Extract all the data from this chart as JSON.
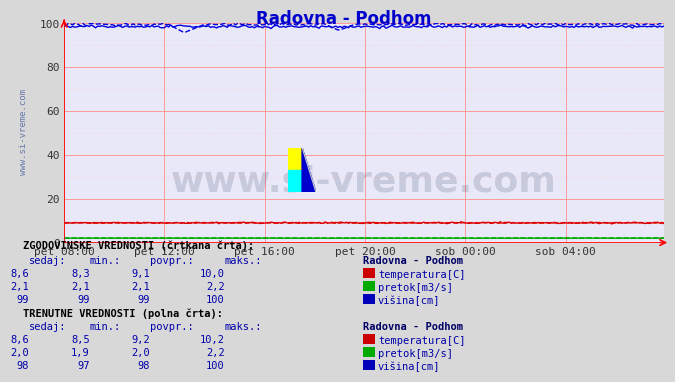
{
  "title": "Radovna - Podhom",
  "title_color": "#0000cc",
  "bg_color": "#d8d8d8",
  "plot_bg_color": "#e8e8f8",
  "grid_color_major": "#ff9999",
  "grid_color_minor": "#ffcccc",
  "xlim": [
    0,
    287
  ],
  "ylim": [
    0,
    100
  ],
  "yticks": [
    0,
    20,
    40,
    60,
    80,
    100
  ],
  "xtick_labels": [
    "pet 08:00",
    "pet 12:00",
    "pet 16:00",
    "pet 20:00",
    "sob 00:00",
    "sob 04:00"
  ],
  "xtick_positions": [
    0,
    48,
    96,
    144,
    192,
    240
  ],
  "watermark": "www.si-vreme.com",
  "watermark_color": "#334466",
  "watermark_alpha": 0.18,
  "sidebar_text": "www.si-vreme.com",
  "sidebar_color": "#6677aa",
  "temp_color": "#dd0000",
  "flow_color": "#00aa00",
  "height_color": "#0000dd",
  "table_text_color": "#0000aa",
  "legend_title": "Radovna - Podhom",
  "hist_label1": "ZGODOVINSKE VREDNOSTI (črtkana črta):",
  "hist_label2": "TRENUTNE VREDNOSTI (polna črta):",
  "col_headers": [
    "sedaj:",
    "min.:",
    "povpr.:",
    "maks.:"
  ],
  "hist_rows": [
    [
      "8,6",
      "8,3",
      "9,1",
      "10,0",
      "temperatura[C]",
      "#cc0000"
    ],
    [
      "2,1",
      "2,1",
      "2,1",
      "2,2",
      "pretok[m3/s]",
      "#00aa00"
    ],
    [
      "99",
      "99",
      "99",
      "100",
      "višina[cm]",
      "#0000bb"
    ]
  ],
  "curr_rows": [
    [
      "8,6",
      "8,5",
      "9,2",
      "10,2",
      "temperatura[C]",
      "#cc0000"
    ],
    [
      "2,0",
      "1,9",
      "2,0",
      "2,2",
      "pretok[m3/s]",
      "#00aa00"
    ],
    [
      "98",
      "97",
      "98",
      "100",
      "višina[cm]",
      "#0000bb"
    ]
  ]
}
